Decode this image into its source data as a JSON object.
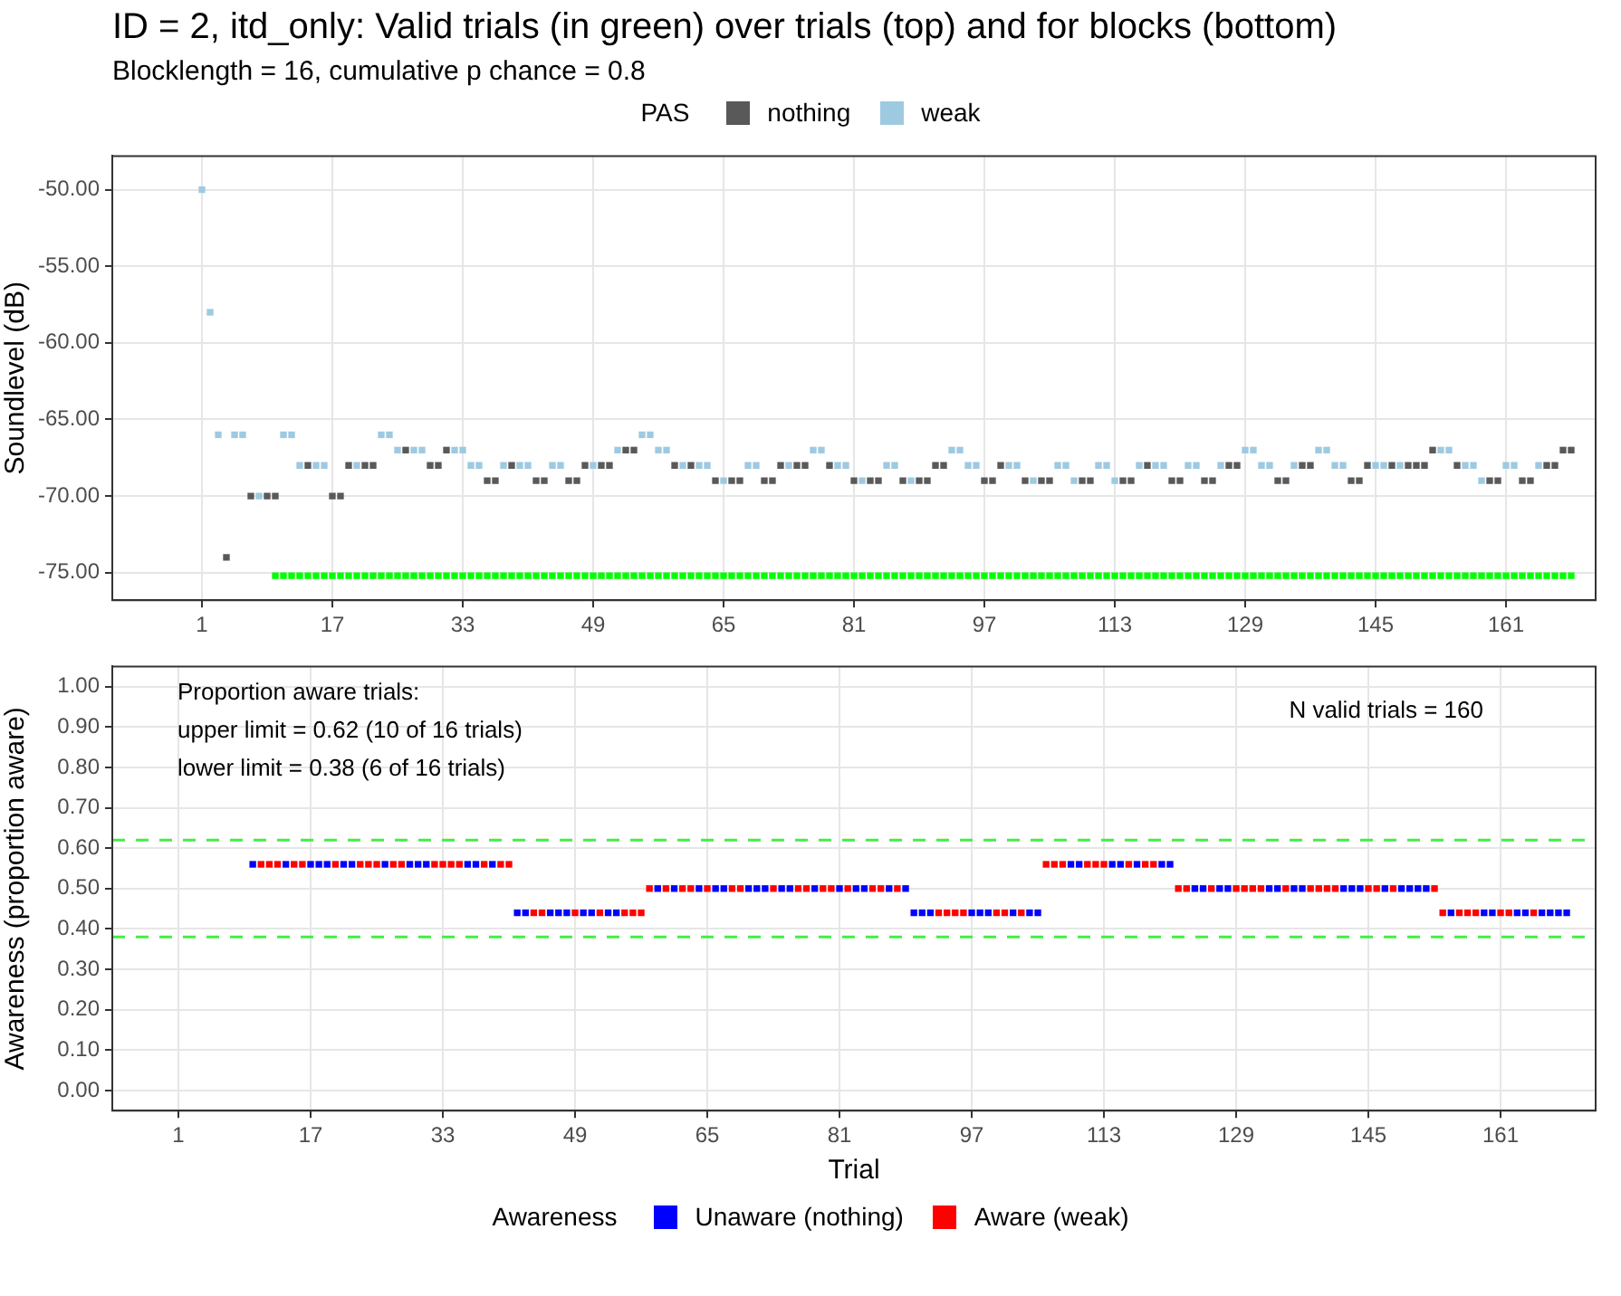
{
  "chart_data": [
    {
      "type": "scatter",
      "title": "ID = 2, itd_only: Valid trials (in green) over trials (top) and for blocks (bottom)",
      "subtitle": "Blocklength = 16, cumulative p chance = 0.8",
      "ylabel": "Soundlevel (dB)",
      "legend_title": "PAS",
      "legend": "top",
      "grid": true,
      "marker": "square",
      "xlim": [
        -10,
        172
      ],
      "xticks": [
        1,
        17,
        33,
        49,
        65,
        81,
        97,
        113,
        129,
        145,
        161
      ],
      "ylim": [
        -76.8,
        -47.8
      ],
      "yticks": [
        {
          "value": -75,
          "label": "-75.00"
        },
        {
          "value": -70,
          "label": "-70.00"
        },
        {
          "value": -65,
          "label": "-65.00"
        },
        {
          "value": -60,
          "label": "-60.00"
        },
        {
          "value": -55,
          "label": "-55.00"
        },
        {
          "value": -50,
          "label": "-50.00"
        }
      ],
      "series": [
        {
          "name": "nothing",
          "color": "#595959",
          "x": [
            4,
            7,
            9,
            10,
            14,
            17,
            18,
            19,
            21,
            22,
            26,
            29,
            30,
            31,
            36,
            37,
            39,
            42,
            43,
            46,
            47,
            48,
            50,
            51,
            53,
            54,
            59,
            61,
            64,
            66,
            67,
            70,
            71,
            72,
            74,
            75,
            78,
            81,
            83,
            84,
            87,
            89,
            90,
            91,
            92,
            97,
            98,
            99,
            102,
            104,
            105,
            109,
            110,
            114,
            115,
            117,
            120,
            121,
            124,
            125,
            127,
            128,
            133,
            134,
            136,
            137,
            142,
            143,
            144,
            147,
            149,
            150,
            151,
            152,
            155,
            159,
            160,
            163,
            164,
            166,
            167,
            168,
            169
          ],
          "values": [
            -74,
            -70,
            -70,
            -70,
            -68,
            -70,
            -70,
            -68,
            -68,
            -68,
            -67,
            -68,
            -68,
            -67,
            -69,
            -69,
            -68,
            -69,
            -69,
            -69,
            -69,
            -68,
            -68,
            -68,
            -67,
            -67,
            -68,
            -68,
            -69,
            -69,
            -69,
            -69,
            -69,
            -68,
            -68,
            -68,
            -68,
            -69,
            -69,
            -69,
            -69,
            -69,
            -69,
            -68,
            -68,
            -69,
            -69,
            -68,
            -69,
            -69,
            -69,
            -69,
            -69,
            -69,
            -69,
            -68,
            -69,
            -69,
            -69,
            -69,
            -68,
            -68,
            -69,
            -69,
            -68,
            -68,
            -69,
            -69,
            -68,
            -68,
            -68,
            -68,
            -68,
            -67,
            -68,
            -69,
            -69,
            -69,
            -69,
            -68,
            -68,
            -67,
            -67
          ]
        },
        {
          "name": "weak",
          "color": "#9ecae1",
          "x": [
            1,
            2,
            3,
            5,
            6,
            8,
            11,
            12,
            13,
            15,
            16,
            20,
            23,
            24,
            25,
            27,
            28,
            32,
            33,
            34,
            35,
            38,
            40,
            41,
            44,
            45,
            49,
            52,
            55,
            56,
            57,
            58,
            60,
            62,
            63,
            65,
            68,
            69,
            73,
            76,
            77,
            79,
            80,
            82,
            85,
            86,
            88,
            93,
            94,
            95,
            96,
            100,
            101,
            103,
            106,
            107,
            108,
            111,
            112,
            113,
            116,
            118,
            119,
            122,
            123,
            126,
            129,
            130,
            131,
            132,
            135,
            138,
            139,
            140,
            141,
            145,
            146,
            148,
            153,
            154,
            156,
            157,
            158,
            161,
            162,
            165
          ],
          "values": [
            -50,
            -58,
            -66,
            -66,
            -66,
            -70,
            -66,
            -66,
            -68,
            -68,
            -68,
            -68,
            -66,
            -66,
            -67,
            -67,
            -67,
            -67,
            -67,
            -68,
            -68,
            -68,
            -68,
            -68,
            -68,
            -68,
            -68,
            -67,
            -66,
            -66,
            -67,
            -67,
            -68,
            -68,
            -68,
            -69,
            -68,
            -68,
            -68,
            -67,
            -67,
            -68,
            -68,
            -69,
            -68,
            -68,
            -69,
            -67,
            -67,
            -68,
            -68,
            -68,
            -68,
            -69,
            -68,
            -68,
            -69,
            -68,
            -68,
            -69,
            -68,
            -68,
            -68,
            -68,
            -68,
            -68,
            -67,
            -67,
            -68,
            -68,
            -68,
            -67,
            -67,
            -68,
            -68,
            -68,
            -68,
            -68,
            -67,
            -67,
            -68,
            -68,
            -69,
            -68,
            -68,
            -68
          ]
        },
        {
          "color": "#00ff00",
          "x": [
            10,
            11,
            12,
            13,
            14,
            15,
            16,
            17,
            18,
            19,
            20,
            21,
            22,
            23,
            24,
            25,
            26,
            27,
            28,
            29,
            30,
            31,
            32,
            33,
            34,
            35,
            36,
            37,
            38,
            39,
            40,
            41,
            42,
            43,
            44,
            45,
            46,
            47,
            48,
            49,
            50,
            51,
            52,
            53,
            54,
            55,
            56,
            57,
            58,
            59,
            60,
            61,
            62,
            63,
            64,
            65,
            66,
            67,
            68,
            69,
            70,
            71,
            72,
            73,
            74,
            75,
            76,
            77,
            78,
            79,
            80,
            81,
            82,
            83,
            84,
            85,
            86,
            87,
            88,
            89,
            90,
            91,
            92,
            93,
            94,
            95,
            96,
            97,
            98,
            99,
            100,
            101,
            102,
            103,
            104,
            105,
            106,
            107,
            108,
            109,
            110,
            111,
            112,
            113,
            114,
            115,
            116,
            117,
            118,
            119,
            120,
            121,
            122,
            123,
            124,
            125,
            126,
            127,
            128,
            129,
            130,
            131,
            132,
            133,
            134,
            135,
            136,
            137,
            138,
            139,
            140,
            141,
            142,
            143,
            144,
            145,
            146,
            147,
            148,
            149,
            150,
            151,
            152,
            153,
            154,
            155,
            156,
            157,
            158,
            159,
            160,
            161,
            162,
            163,
            164,
            165,
            166,
            167,
            168,
            169
          ],
          "values": [
            -75.2,
            -75.2,
            -75.2,
            -75.2,
            -75.2,
            -75.2,
            -75.2,
            -75.2,
            -75.2,
            -75.2,
            -75.2,
            -75.2,
            -75.2,
            -75.2,
            -75.2,
            -75.2,
            -75.2,
            -75.2,
            -75.2,
            -75.2,
            -75.2,
            -75.2,
            -75.2,
            -75.2,
            -75.2,
            -75.2,
            -75.2,
            -75.2,
            -75.2,
            -75.2,
            -75.2,
            -75.2,
            -75.2,
            -75.2,
            -75.2,
            -75.2,
            -75.2,
            -75.2,
            -75.2,
            -75.2,
            -75.2,
            -75.2,
            -75.2,
            -75.2,
            -75.2,
            -75.2,
            -75.2,
            -75.2,
            -75.2,
            -75.2,
            -75.2,
            -75.2,
            -75.2,
            -75.2,
            -75.2,
            -75.2,
            -75.2,
            -75.2,
            -75.2,
            -75.2,
            -75.2,
            -75.2,
            -75.2,
            -75.2,
            -75.2,
            -75.2,
            -75.2,
            -75.2,
            -75.2,
            -75.2,
            -75.2,
            -75.2,
            -75.2,
            -75.2,
            -75.2,
            -75.2,
            -75.2,
            -75.2,
            -75.2,
            -75.2,
            -75.2,
            -75.2,
            -75.2,
            -75.2,
            -75.2,
            -75.2,
            -75.2,
            -75.2,
            -75.2,
            -75.2,
            -75.2,
            -75.2,
            -75.2,
            -75.2,
            -75.2,
            -75.2,
            -75.2,
            -75.2,
            -75.2,
            -75.2,
            -75.2,
            -75.2,
            -75.2,
            -75.2,
            -75.2,
            -75.2,
            -75.2,
            -75.2,
            -75.2,
            -75.2,
            -75.2,
            -75.2,
            -75.2,
            -75.2,
            -75.2,
            -75.2,
            -75.2,
            -75.2,
            -75.2,
            -75.2,
            -75.2,
            -75.2,
            -75.2,
            -75.2,
            -75.2,
            -75.2,
            -75.2,
            -75.2,
            -75.2,
            -75.2,
            -75.2,
            -75.2,
            -75.2,
            -75.2,
            -75.2,
            -75.2,
            -75.2,
            -75.2,
            -75.2,
            -75.2,
            -75.2,
            -75.2,
            -75.2,
            -75.2,
            -75.2,
            -75.2,
            -75.2,
            -75.2,
            -75.2,
            -75.2,
            -75.2,
            -75.2,
            -75.2,
            -75.2,
            -75.2,
            -75.2,
            -75.2,
            -75.2,
            -75.2,
            -75.2
          ]
        }
      ]
    },
    {
      "type": "scatter",
      "xlabel": "Trial",
      "ylabel": "Awareness (proportion aware)",
      "legend_title": "Awareness",
      "legend": "bottom",
      "grid": true,
      "marker": "square",
      "xlim": [
        -7,
        172.5
      ],
      "xticks": [
        1,
        17,
        33,
        49,
        65,
        81,
        97,
        113,
        129,
        145,
        161
      ],
      "ylim": [
        -0.05,
        1.05
      ],
      "yticks": [
        {
          "value": 0,
          "label": "0.00"
        },
        {
          "value": 0.1,
          "label": "0.10"
        },
        {
          "value": 0.2,
          "label": "0.20"
        },
        {
          "value": 0.3,
          "label": "0.30"
        },
        {
          "value": 0.4,
          "label": "0.40"
        },
        {
          "value": 0.5,
          "label": "0.50"
        },
        {
          "value": 0.6,
          "label": "0.60"
        },
        {
          "value": 0.7,
          "label": "0.70"
        },
        {
          "value": 0.8,
          "label": "0.80"
        },
        {
          "value": 0.9,
          "label": "0.90"
        },
        {
          "value": 1,
          "label": "1.00"
        }
      ],
      "ref_lines": [
        {
          "axis": "y",
          "value": 0.62,
          "color": "#44ee44",
          "line_style": "dashed"
        },
        {
          "axis": "y",
          "value": 0.38,
          "color": "#44ee44",
          "line_style": "dashed"
        }
      ],
      "annotations": [
        "Proportion aware trials:",
        "upper limit = 0.62 (10 of 16 trials)",
        "lower limit = 0.38 (6 of 16 trials)",
        "N valid trials = 160"
      ],
      "series": [
        {
          "name": "Unaware (nothing)",
          "color": "#0000ff",
          "x": [
            10,
            14,
            17,
            18,
            19,
            21,
            22,
            26,
            29,
            30,
            31,
            36,
            37,
            39,
            42,
            43,
            46,
            47,
            48,
            50,
            51,
            53,
            54,
            59,
            61,
            64,
            66,
            67,
            70,
            71,
            72,
            74,
            75,
            78,
            81,
            83,
            84,
            87,
            89,
            90,
            91,
            92,
            97,
            98,
            99,
            102,
            104,
            105,
            109,
            110,
            114,
            115,
            117,
            120,
            121,
            124,
            125,
            127,
            128,
            133,
            134,
            136,
            137,
            142,
            143,
            144,
            147,
            149,
            150,
            151,
            152,
            155,
            159,
            160,
            163,
            164,
            166,
            167,
            168,
            169
          ],
          "values": [
            0.56,
            0.56,
            0.56,
            0.56,
            0.56,
            0.56,
            0.56,
            0.56,
            0.56,
            0.56,
            0.56,
            0.56,
            0.56,
            0.56,
            0.44,
            0.44,
            0.44,
            0.44,
            0.44,
            0.44,
            0.44,
            0.44,
            0.44,
            0.5,
            0.5,
            0.5,
            0.5,
            0.5,
            0.5,
            0.5,
            0.5,
            0.5,
            0.5,
            0.5,
            0.5,
            0.5,
            0.5,
            0.5,
            0.5,
            0.44,
            0.44,
            0.44,
            0.44,
            0.44,
            0.44,
            0.44,
            0.44,
            0.44,
            0.56,
            0.56,
            0.56,
            0.56,
            0.56,
            0.56,
            0.56,
            0.5,
            0.5,
            0.5,
            0.5,
            0.5,
            0.5,
            0.5,
            0.5,
            0.5,
            0.5,
            0.5,
            0.5,
            0.5,
            0.5,
            0.5,
            0.5,
            0.44,
            0.44,
            0.44,
            0.44,
            0.44,
            0.44,
            0.44,
            0.44,
            0.44
          ]
        },
        {
          "name": "Aware (weak)",
          "color": "#ff0000",
          "x": [
            11,
            12,
            13,
            15,
            16,
            20,
            23,
            24,
            25,
            27,
            28,
            32,
            33,
            34,
            35,
            38,
            40,
            41,
            44,
            45,
            49,
            52,
            55,
            56,
            57,
            58,
            60,
            62,
            63,
            65,
            68,
            69,
            73,
            76,
            77,
            79,
            80,
            82,
            85,
            86,
            88,
            93,
            94,
            95,
            96,
            100,
            101,
            103,
            106,
            107,
            108,
            111,
            112,
            113,
            116,
            118,
            119,
            122,
            123,
            126,
            129,
            130,
            131,
            132,
            135,
            138,
            139,
            140,
            141,
            145,
            146,
            148,
            153,
            154,
            156,
            157,
            158,
            161,
            162,
            165
          ],
          "values": [
            0.56,
            0.56,
            0.56,
            0.56,
            0.56,
            0.56,
            0.56,
            0.56,
            0.56,
            0.56,
            0.56,
            0.56,
            0.56,
            0.56,
            0.56,
            0.56,
            0.56,
            0.56,
            0.44,
            0.44,
            0.44,
            0.44,
            0.44,
            0.44,
            0.44,
            0.5,
            0.5,
            0.5,
            0.5,
            0.5,
            0.5,
            0.5,
            0.5,
            0.5,
            0.5,
            0.5,
            0.5,
            0.5,
            0.5,
            0.5,
            0.5,
            0.44,
            0.44,
            0.44,
            0.44,
            0.44,
            0.44,
            0.44,
            0.56,
            0.56,
            0.56,
            0.56,
            0.56,
            0.56,
            0.56,
            0.56,
            0.56,
            0.5,
            0.5,
            0.5,
            0.5,
            0.5,
            0.5,
            0.5,
            0.5,
            0.5,
            0.5,
            0.5,
            0.5,
            0.5,
            0.5,
            0.5,
            0.5,
            0.44,
            0.44,
            0.44,
            0.44,
            0.44,
            0.44,
            0.44
          ]
        }
      ]
    }
  ]
}
